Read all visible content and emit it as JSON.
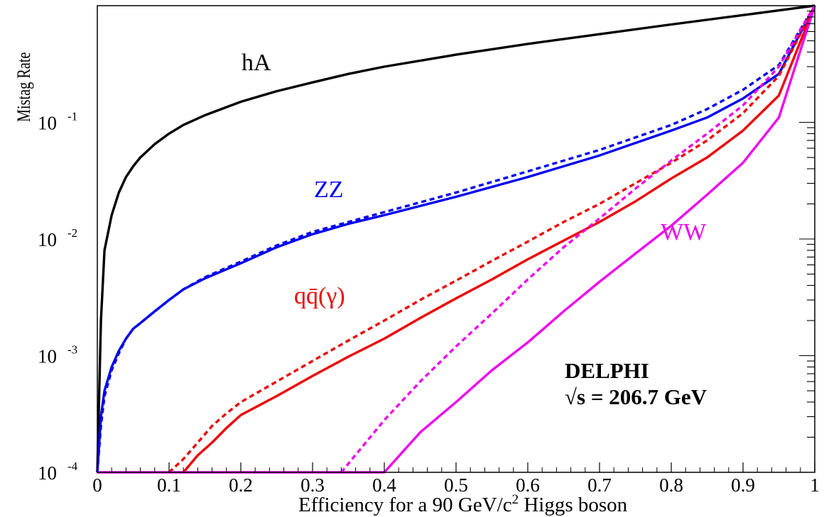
{
  "chart_data": {
    "type": "line",
    "title": "",
    "xlabel": "Efficiency for a 90 GeV/c",
    "xlabel_sup": "2",
    "xlabel_tail": " Higgs boson",
    "ylabel": "Mistag Rate",
    "xlim": [
      0,
      1
    ],
    "ylim": [
      0.0001,
      1
    ],
    "yscale": "log",
    "grid": false,
    "x_ticks": [
      "0",
      "0.1",
      "0.2",
      "0.3",
      "0.4",
      "0.5",
      "0.6",
      "0.7",
      "0.8",
      "0.9",
      "1"
    ],
    "y_ticks": [
      {
        "base": "10",
        "exp": "-4"
      },
      {
        "base": "10",
        "exp": "-3"
      },
      {
        "base": "10",
        "exp": "-2"
      },
      {
        "base": "10",
        "exp": "-1"
      }
    ],
    "annotations": {
      "experiment": "DELPHI",
      "energy": "√s = 206.7 GeV",
      "label_hA": "hA",
      "label_ZZ": "ZZ",
      "label_WW": "WW",
      "label_qq": "qq̄(γ)"
    },
    "series": [
      {
        "key": "hA",
        "color": "#000000",
        "dashed": false,
        "x": [
          0,
          0.005,
          0.01,
          0.02,
          0.03,
          0.04,
          0.05,
          0.06,
          0.08,
          0.1,
          0.12,
          0.15,
          0.2,
          0.25,
          0.3,
          0.35,
          0.4,
          0.5,
          0.6,
          0.7,
          0.8,
          0.9,
          1.0
        ],
        "y": [
          0.0001,
          0.002,
          0.008,
          0.016,
          0.025,
          0.034,
          0.042,
          0.05,
          0.065,
          0.08,
          0.095,
          0.115,
          0.15,
          0.185,
          0.22,
          0.26,
          0.3,
          0.38,
          0.47,
          0.57,
          0.69,
          0.83,
          1.0
        ]
      },
      {
        "key": "ZZ-solid",
        "color": "#0000ee",
        "dashed": false,
        "x": [
          0,
          0.005,
          0.01,
          0.02,
          0.03,
          0.04,
          0.05,
          0.06,
          0.08,
          0.1,
          0.12,
          0.15,
          0.2,
          0.25,
          0.3,
          0.35,
          0.4,
          0.5,
          0.6,
          0.7,
          0.8,
          0.85,
          0.9,
          0.95,
          1.0
        ],
        "y": [
          0.0001,
          0.0003,
          0.0005,
          0.0008,
          0.0011,
          0.0014,
          0.0017,
          0.0019,
          0.0024,
          0.003,
          0.0037,
          0.0046,
          0.0062,
          0.0085,
          0.011,
          0.0135,
          0.016,
          0.023,
          0.034,
          0.052,
          0.085,
          0.11,
          0.16,
          0.26,
          1.0
        ]
      },
      {
        "key": "ZZ-dashed",
        "color": "#0000ee",
        "dashed": true,
        "x": [
          0,
          0.005,
          0.01,
          0.02,
          0.03,
          0.04,
          0.05,
          0.06,
          0.08,
          0.1,
          0.12,
          0.15,
          0.2,
          0.25,
          0.3,
          0.35,
          0.4,
          0.5,
          0.6,
          0.7,
          0.8,
          0.85,
          0.9,
          0.95,
          1.0
        ],
        "y": [
          0.0001,
          0.00025,
          0.00045,
          0.00075,
          0.00105,
          0.0014,
          0.0017,
          0.0019,
          0.0024,
          0.003,
          0.0037,
          0.0047,
          0.0064,
          0.0088,
          0.0115,
          0.014,
          0.017,
          0.025,
          0.038,
          0.058,
          0.095,
          0.13,
          0.19,
          0.31,
          1.0
        ]
      },
      {
        "key": "qq-solid",
        "color": "#ee0000",
        "dashed": false,
        "x": [
          0.12,
          0.14,
          0.16,
          0.18,
          0.2,
          0.25,
          0.3,
          0.35,
          0.4,
          0.45,
          0.5,
          0.55,
          0.6,
          0.65,
          0.7,
          0.75,
          0.8,
          0.85,
          0.9,
          0.95,
          1.0
        ],
        "y": [
          0.0001,
          0.00014,
          0.00018,
          0.00024,
          0.00031,
          0.00045,
          0.00067,
          0.00098,
          0.0014,
          0.0021,
          0.0031,
          0.0045,
          0.0067,
          0.0097,
          0.014,
          0.021,
          0.033,
          0.05,
          0.085,
          0.17,
          1.0
        ]
      },
      {
        "key": "qq-dashed",
        "color": "#ee0000",
        "dashed": true,
        "x": [
          0.1,
          0.12,
          0.14,
          0.16,
          0.18,
          0.2,
          0.25,
          0.3,
          0.35,
          0.4,
          0.45,
          0.5,
          0.55,
          0.6,
          0.65,
          0.7,
          0.75,
          0.8,
          0.85,
          0.9,
          0.95,
          1.0
        ],
        "y": [
          0.0001,
          0.00013,
          0.00018,
          0.00025,
          0.00032,
          0.0004,
          0.0006,
          0.0009,
          0.00135,
          0.002,
          0.003,
          0.0044,
          0.0065,
          0.0095,
          0.014,
          0.02,
          0.03,
          0.045,
          0.07,
          0.12,
          0.25,
          1.0
        ]
      },
      {
        "key": "WW-solid",
        "color": "#ee00ee",
        "dashed": false,
        "x": [
          0.0,
          0.4,
          0.45,
          0.5,
          0.55,
          0.6,
          0.65,
          0.7,
          0.75,
          0.8,
          0.85,
          0.9,
          0.95,
          1.0
        ],
        "y": [
          0.0001,
          0.0001,
          0.00022,
          0.0004,
          0.00075,
          0.0013,
          0.0024,
          0.0043,
          0.0075,
          0.013,
          0.024,
          0.045,
          0.11,
          1.0
        ]
      },
      {
        "key": "WW-dashed",
        "color": "#ee00ee",
        "dashed": true,
        "x": [
          0.34,
          0.4,
          0.45,
          0.5,
          0.55,
          0.6,
          0.65,
          0.7,
          0.75,
          0.8,
          0.85,
          0.9,
          0.95,
          1.0
        ],
        "y": [
          0.0001,
          0.00028,
          0.0006,
          0.0012,
          0.0023,
          0.0045,
          0.0085,
          0.015,
          0.027,
          0.047,
          0.08,
          0.14,
          0.3,
          1.0
        ]
      }
    ]
  }
}
